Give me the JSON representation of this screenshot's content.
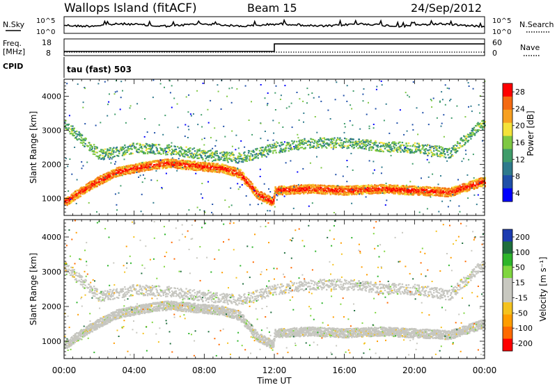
{
  "header": {
    "station": "Wallops Island (fitACF)",
    "beam": "Beam 15",
    "date": "24/Sep/2012"
  },
  "noise_panel": {
    "left_label": "N.Sky",
    "left_ticks": [
      "10^5",
      "10^0"
    ],
    "right_ticks": [
      "10^5",
      "10^0"
    ],
    "right_label": "N.Search"
  },
  "freq_panel": {
    "left_label_1": "Freq.",
    "left_label_2": "[MHz]",
    "left_ticks": [
      "18",
      "8"
    ],
    "right_ticks": [
      "60",
      "0"
    ],
    "right_label": "Nave",
    "frequency_mhz": [
      {
        "t": 0,
        "f": 10.5
      },
      {
        "t": 12,
        "f": 10.5
      },
      {
        "t": 12,
        "f": 15.0
      },
      {
        "t": 24,
        "f": 15.0
      }
    ]
  },
  "cpid_panel": {
    "label": "CPID",
    "text": "tau (fast) 503"
  },
  "chart_data": [
    {
      "type": "heatmap",
      "parameter": "power",
      "xlabel": "Time UT",
      "ylabel": "Slant Range [km]",
      "x_ticks": [
        "00:00",
        "04:00",
        "08:00",
        "12:00",
        "16:00",
        "20:00",
        "00:00"
      ],
      "xlim": [
        0,
        24
      ],
      "y_ticks": [
        "1000",
        "2000",
        "3000",
        "4000"
      ],
      "ylim": [
        500,
        4500
      ],
      "colorbar": {
        "label": "Power [dB]",
        "ticks": [
          "4",
          "8",
          "12",
          "16",
          "20",
          "24",
          "28"
        ],
        "range": [
          0,
          30
        ]
      },
      "features": [
        {
          "name": "lower band",
          "time_h": [
            0,
            1,
            2,
            3,
            4,
            5,
            6,
            7,
            8,
            9,
            10,
            11,
            11.9,
            12,
            14,
            16,
            18,
            20,
            22,
            23.8
          ],
          "range_km": [
            900,
            1250,
            1550,
            1800,
            1900,
            2000,
            2050,
            2000,
            1950,
            1900,
            1750,
            1150,
            900,
            1250,
            1300,
            1250,
            1300,
            1250,
            1200,
            1500
          ],
          "power_db": 24
        },
        {
          "name": "upper band",
          "time_h": [
            0,
            2,
            4,
            6,
            8,
            10,
            12,
            14,
            16,
            18,
            20,
            22,
            23.8
          ],
          "range_km": [
            3200,
            2300,
            2500,
            2450,
            2300,
            2200,
            2500,
            2650,
            2650,
            2550,
            2500,
            2350,
            3200
          ],
          "power_db": 14
        }
      ]
    },
    {
      "type": "heatmap",
      "parameter": "velocity",
      "xlabel": "Time UT",
      "ylabel": "Slant Range [km]",
      "x_ticks": [
        "00:00",
        "04:00",
        "08:00",
        "12:00",
        "16:00",
        "20:00",
        "00:00"
      ],
      "xlim": [
        0,
        24
      ],
      "y_ticks": [
        "1000",
        "2000",
        "3000",
        "4000"
      ],
      "ylim": [
        500,
        4500
      ],
      "colorbar": {
        "label": "Velocity [m s⁻¹]",
        "ticks": [
          "200",
          "100",
          "50",
          "15",
          "-15",
          "-50",
          "-100",
          "-200"
        ],
        "range": [
          -250,
          250
        ]
      },
      "features": [
        {
          "name": "ground scatter lower",
          "time_h": [
            0,
            1,
            2,
            3,
            4,
            5,
            6,
            7,
            8,
            9,
            10,
            11,
            11.9,
            12,
            14,
            16,
            18,
            20,
            22,
            23.8
          ],
          "range_km": [
            900,
            1250,
            1550,
            1800,
            1900,
            2000,
            2050,
            2000,
            1950,
            1900,
            1750,
            1150,
            900,
            1250,
            1300,
            1250,
            1300,
            1250,
            1200,
            1500
          ],
          "velocity": 0
        },
        {
          "name": "ground scatter upper",
          "time_h": [
            0,
            2,
            4,
            6,
            8,
            10,
            12,
            14,
            16,
            18,
            20,
            22,
            23.8
          ],
          "range_km": [
            3200,
            2300,
            2500,
            2450,
            2300,
            2200,
            2500,
            2650,
            2650,
            2550,
            2500,
            2350,
            3200
          ],
          "velocity": 0
        }
      ]
    }
  ],
  "colors": {
    "power_scale": [
      "#0000ff",
      "#1f4fa8",
      "#2e7a8c",
      "#3f9c6a",
      "#7ec843",
      "#f4e23a",
      "#f7a021",
      "#f46a12",
      "#ff0000"
    ],
    "velocity_scale": [
      "#ff0000",
      "#ff6a00",
      "#ff9d00",
      "#f4c21f",
      "#c8c8c0",
      "#c8c8c0",
      "#7fd63f",
      "#2db52a",
      "#1f6e3c",
      "#1c3bb0"
    ],
    "ground_scatter": "#c6c6c0"
  }
}
